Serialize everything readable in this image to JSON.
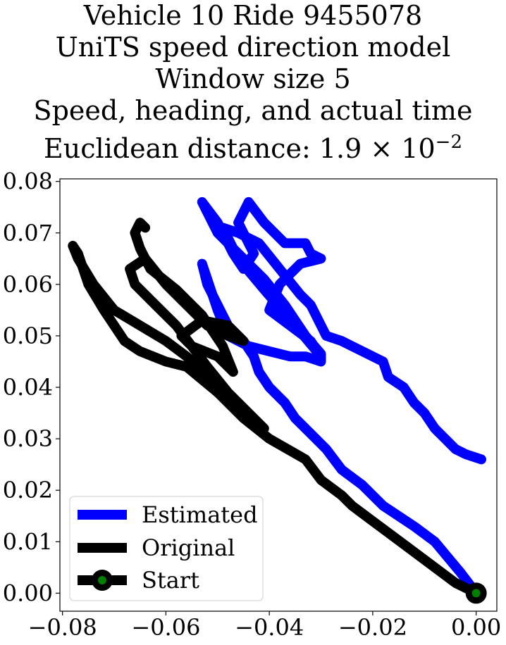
{
  "chart_data": {
    "type": "line",
    "title_lines": [
      "Vehicle 10 Ride 9455078",
      "UniTS speed direction model",
      "Window size 5",
      "Speed, heading, and actual time"
    ],
    "title_metric_prefix": "Euclidean distance: 1.9",
    "title_metric_times": "×",
    "title_metric_base": "10",
    "title_metric_exp": "−2",
    "xlabel": "",
    "ylabel": "",
    "xlim": [
      -0.0805,
      0.004
    ],
    "ylim": [
      -0.0035,
      0.0805
    ],
    "xticks": [
      -0.08,
      -0.06,
      -0.04,
      -0.02,
      0.0
    ],
    "xtick_labels": [
      "−0.08",
      "−0.06",
      "−0.04",
      "−0.02",
      "0.00"
    ],
    "yticks": [
      0.0,
      0.01,
      0.02,
      0.03,
      0.04,
      0.05,
      0.06,
      0.07,
      0.08
    ],
    "ytick_labels": [
      "0.00",
      "0.01",
      "0.02",
      "0.03",
      "0.04",
      "0.05",
      "0.06",
      "0.07",
      "0.08"
    ],
    "grid": false,
    "legend_position": "lower-left",
    "legend": [
      "Estimated",
      "Original",
      "Start"
    ],
    "series": [
      {
        "name": "Estimated",
        "color": "#0000ff",
        "points": [
          [
            0.0,
            0.0
          ],
          [
            -0.003,
            0.004
          ],
          [
            -0.008,
            0.01
          ],
          [
            -0.012,
            0.013
          ],
          [
            -0.018,
            0.017
          ],
          [
            -0.022,
            0.021
          ],
          [
            -0.026,
            0.024
          ],
          [
            -0.029,
            0.028
          ],
          [
            -0.032,
            0.031
          ],
          [
            -0.035,
            0.034
          ],
          [
            -0.037,
            0.037
          ],
          [
            -0.04,
            0.04
          ],
          [
            -0.042,
            0.043
          ],
          [
            -0.043,
            0.046
          ],
          [
            -0.045,
            0.049
          ],
          [
            -0.048,
            0.052
          ],
          [
            -0.05,
            0.056
          ],
          [
            -0.052,
            0.06
          ],
          [
            -0.053,
            0.064
          ],
          [
            -0.052,
            0.061
          ],
          [
            -0.05,
            0.055
          ],
          [
            -0.048,
            0.05
          ],
          [
            -0.044,
            0.048
          ],
          [
            -0.04,
            0.047
          ],
          [
            -0.036,
            0.046
          ],
          [
            -0.033,
            0.046
          ],
          [
            -0.03,
            0.045
          ],
          [
            -0.03,
            0.0465
          ],
          [
            -0.033,
            0.05
          ],
          [
            -0.037,
            0.056
          ],
          [
            -0.041,
            0.061
          ],
          [
            -0.046,
            0.066
          ],
          [
            -0.05,
            0.07
          ],
          [
            -0.052,
            0.074
          ],
          [
            -0.053,
            0.076
          ],
          [
            -0.05,
            0.072
          ],
          [
            -0.047,
            0.066
          ],
          [
            -0.045,
            0.063
          ],
          [
            -0.043,
            0.066
          ],
          [
            -0.046,
            0.072
          ],
          [
            -0.044,
            0.076
          ],
          [
            -0.041,
            0.072
          ],
          [
            -0.037,
            0.068
          ],
          [
            -0.033,
            0.068
          ],
          [
            -0.032,
            0.066
          ],
          [
            -0.03,
            0.065
          ],
          [
            -0.034,
            0.064
          ],
          [
            -0.038,
            0.06
          ],
          [
            -0.04,
            0.055
          ],
          [
            -0.036,
            0.052
          ],
          [
            -0.032,
            0.049
          ],
          [
            -0.03,
            0.046
          ],
          [
            -0.035,
            0.052
          ],
          [
            -0.041,
            0.059
          ],
          [
            -0.046,
            0.065
          ],
          [
            -0.049,
            0.071
          ],
          [
            -0.046,
            0.07
          ],
          [
            -0.042,
            0.068
          ],
          [
            -0.038,
            0.063
          ],
          [
            -0.034,
            0.058
          ],
          [
            -0.032,
            0.056
          ],
          [
            -0.029,
            0.05
          ],
          [
            -0.026,
            0.049
          ],
          [
            -0.022,
            0.047
          ],
          [
            -0.018,
            0.045
          ],
          [
            -0.017,
            0.042
          ],
          [
            -0.014,
            0.04
          ],
          [
            -0.012,
            0.037
          ],
          [
            -0.01,
            0.035
          ],
          [
            -0.008,
            0.032
          ],
          [
            -0.006,
            0.03
          ],
          [
            -0.004,
            0.028
          ],
          [
            -0.002,
            0.027
          ],
          [
            0.001,
            0.026
          ]
        ]
      },
      {
        "name": "Original",
        "color": "#000000",
        "points": [
          [
            0.0,
            0.0
          ],
          [
            -0.004,
            0.002
          ],
          [
            -0.008,
            0.005
          ],
          [
            -0.012,
            0.008
          ],
          [
            -0.016,
            0.011
          ],
          [
            -0.02,
            0.014
          ],
          [
            -0.024,
            0.017
          ],
          [
            -0.026,
            0.019
          ],
          [
            -0.03,
            0.022
          ],
          [
            -0.033,
            0.026
          ],
          [
            -0.04,
            0.03
          ],
          [
            -0.045,
            0.034
          ],
          [
            -0.05,
            0.039
          ],
          [
            -0.056,
            0.044
          ],
          [
            -0.06,
            0.045
          ],
          [
            -0.065,
            0.047
          ],
          [
            -0.068,
            0.049
          ],
          [
            -0.072,
            0.055
          ],
          [
            -0.075,
            0.06
          ],
          [
            -0.077,
            0.066
          ],
          [
            -0.078,
            0.0675
          ],
          [
            -0.077,
            0.065
          ],
          [
            -0.074,
            0.06
          ],
          [
            -0.07,
            0.055
          ],
          [
            -0.065,
            0.052
          ],
          [
            -0.06,
            0.049
          ],
          [
            -0.056,
            0.046
          ],
          [
            -0.053,
            0.043
          ],
          [
            -0.05,
            0.04
          ],
          [
            -0.047,
            0.037
          ],
          [
            -0.044,
            0.034
          ],
          [
            -0.041,
            0.032
          ],
          [
            -0.044,
            0.035
          ],
          [
            -0.048,
            0.039
          ],
          [
            -0.052,
            0.044
          ],
          [
            -0.055,
            0.048
          ],
          [
            -0.058,
            0.052
          ],
          [
            -0.062,
            0.056
          ],
          [
            -0.066,
            0.06
          ],
          [
            -0.067,
            0.063
          ],
          [
            -0.064,
            0.065
          ],
          [
            -0.06,
            0.06
          ],
          [
            -0.056,
            0.056
          ],
          [
            -0.052,
            0.052
          ],
          [
            -0.048,
            0.05
          ],
          [
            -0.045,
            0.049
          ],
          [
            -0.048,
            0.052
          ],
          [
            -0.053,
            0.053
          ],
          [
            -0.057,
            0.05
          ],
          [
            -0.055,
            0.048
          ],
          [
            -0.05,
            0.046
          ],
          [
            -0.047,
            0.043
          ],
          [
            -0.049,
            0.048
          ],
          [
            -0.053,
            0.054
          ],
          [
            -0.058,
            0.059
          ],
          [
            -0.063,
            0.063
          ],
          [
            -0.065,
            0.067
          ],
          [
            -0.066,
            0.07
          ],
          [
            -0.065,
            0.072
          ],
          [
            -0.064,
            0.071
          ]
        ]
      }
    ],
    "start_point": {
      "name": "Start",
      "x": 0.0,
      "y": 0.0,
      "color": "#000000",
      "center_color": "#008000"
    }
  }
}
